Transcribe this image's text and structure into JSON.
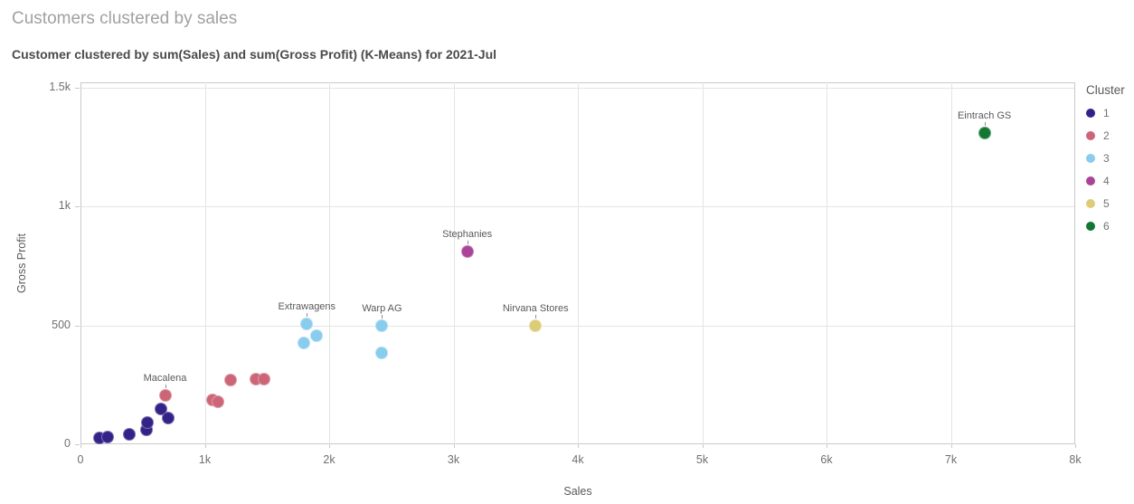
{
  "header": {
    "title": "Customers clustered by sales",
    "subtitle": "Customer clustered by sum(Sales) and sum(Gross Profit) (K-Means) for 2021-Jul"
  },
  "chart_data": {
    "type": "scatter",
    "title": "Customers clustered by sales",
    "subtitle": "Customer clustered by sum(Sales) and sum(Gross Profit) (K-Means) for 2021-Jul",
    "xlabel": "Sales",
    "ylabel": "Gross Profit",
    "xlim": [
      0,
      8000
    ],
    "ylim": [
      0,
      1523
    ],
    "grid": true,
    "x_ticks": [
      {
        "v": 0,
        "label": "0"
      },
      {
        "v": 1000,
        "label": "1k"
      },
      {
        "v": 2000,
        "label": "2k"
      },
      {
        "v": 3000,
        "label": "3k"
      },
      {
        "v": 4000,
        "label": "4k"
      },
      {
        "v": 5000,
        "label": "5k"
      },
      {
        "v": 6000,
        "label": "6k"
      },
      {
        "v": 7000,
        "label": "7k"
      },
      {
        "v": 8000,
        "label": "8k"
      }
    ],
    "y_ticks": [
      {
        "v": 0,
        "label": "0"
      },
      {
        "v": 500,
        "label": "500"
      },
      {
        "v": 1000,
        "label": "1k"
      },
      {
        "v": 1500,
        "label": "1.5k"
      }
    ],
    "legend": {
      "title": "Cluster",
      "position": "right",
      "items": [
        {
          "label": "1",
          "color": "#332288"
        },
        {
          "label": "2",
          "color": "#CC6677"
        },
        {
          "label": "3",
          "color": "#88CCEE"
        },
        {
          "label": "4",
          "color": "#AA4499"
        },
        {
          "label": "5",
          "color": "#DDCC77"
        },
        {
          "label": "6",
          "color": "#117733"
        }
      ]
    },
    "series": [
      {
        "name": "1",
        "color": "#332288",
        "points": [
          {
            "x": 150,
            "y": 25
          },
          {
            "x": 215,
            "y": 32
          },
          {
            "x": 390,
            "y": 42
          },
          {
            "x": 530,
            "y": 60
          },
          {
            "x": 540,
            "y": 92
          },
          {
            "x": 650,
            "y": 148
          },
          {
            "x": 705,
            "y": 112
          }
        ]
      },
      {
        "name": "2",
        "color": "#CC6677",
        "points": [
          {
            "x": 680,
            "y": 205,
            "label": "Macalena"
          },
          {
            "x": 1060,
            "y": 185
          },
          {
            "x": 1105,
            "y": 180
          },
          {
            "x": 1205,
            "y": 270
          },
          {
            "x": 1410,
            "y": 275
          },
          {
            "x": 1475,
            "y": 275
          }
        ]
      },
      {
        "name": "3",
        "color": "#88CCEE",
        "points": [
          {
            "x": 1795,
            "y": 425
          },
          {
            "x": 1820,
            "y": 505,
            "label": "Extrawagens"
          },
          {
            "x": 1900,
            "y": 455
          },
          {
            "x": 2420,
            "y": 385
          },
          {
            "x": 2425,
            "y": 500,
            "label": "Warp AG"
          }
        ]
      },
      {
        "name": "4",
        "color": "#AA4499",
        "points": [
          {
            "x": 3110,
            "y": 810,
            "label": "Stephanies"
          }
        ]
      },
      {
        "name": "5",
        "color": "#DDCC77",
        "points": [
          {
            "x": 3660,
            "y": 500,
            "label": "Nirvana Stores"
          }
        ]
      },
      {
        "name": "6",
        "color": "#117733",
        "points": [
          {
            "x": 7270,
            "y": 1310,
            "label": "Eintrach GS"
          }
        ]
      }
    ]
  }
}
